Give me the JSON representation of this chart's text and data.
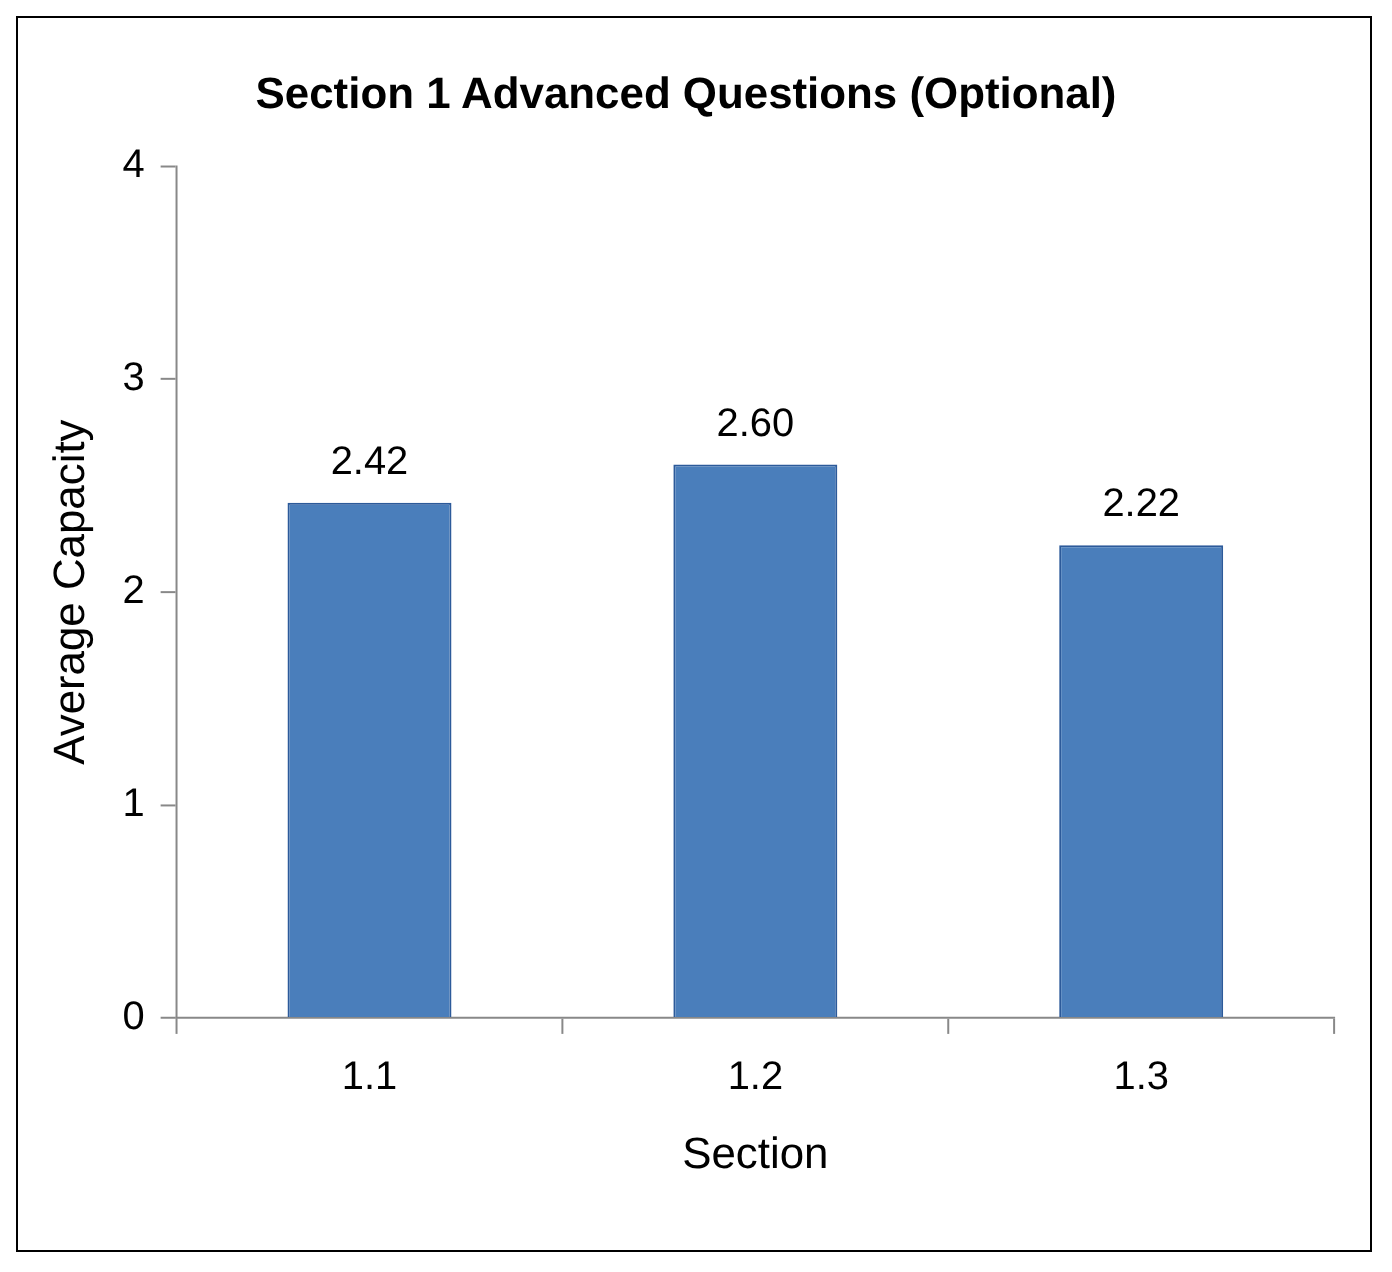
{
  "chart_data": {
    "type": "bar",
    "title": "Section 1 Advanced Questions (Optional)",
    "xlabel": "Section",
    "ylabel": "Average Capacity",
    "categories": [
      "1.1",
      "1.2",
      "1.3"
    ],
    "values": [
      2.42,
      2.6,
      2.22
    ],
    "value_labels": [
      "2.42",
      "2.60",
      "2.22"
    ],
    "color": "#4a7ebb",
    "ylim": [
      0,
      4
    ],
    "yticks": [
      0,
      1,
      2,
      3,
      4
    ],
    "grid": false,
    "legend": false
  }
}
